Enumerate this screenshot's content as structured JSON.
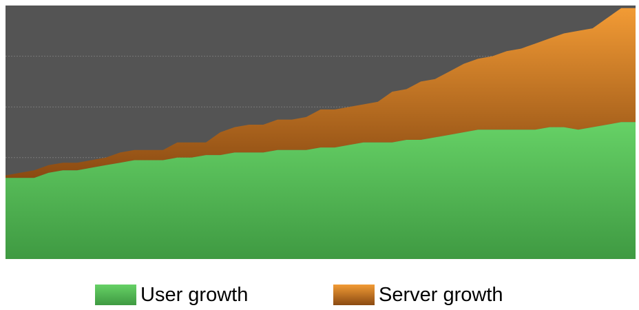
{
  "chart_data": {
    "type": "area",
    "stacked": true,
    "title": "",
    "xlabel": "",
    "ylabel": "",
    "grid": true,
    "legend_position": "bottom",
    "plot_background": "#545454",
    "ylim": [
      0,
      100
    ],
    "x": [
      1,
      2,
      3,
      4,
      5,
      6,
      7,
      8,
      9,
      10,
      11,
      12,
      13,
      14,
      15,
      16,
      17,
      18,
      19,
      20,
      21,
      22,
      23,
      24,
      25,
      26,
      27,
      28,
      29,
      30,
      31,
      32,
      33,
      34,
      35,
      36,
      37,
      38,
      39,
      40,
      41,
      42,
      43,
      44,
      45
    ],
    "series": [
      {
        "name": "User growth",
        "color_top": "#66d166",
        "color_bottom": "#3f9a42",
        "values": [
          32,
          32,
          32,
          34,
          35,
          35,
          36,
          37,
          38,
          39,
          39,
          39,
          40,
          40,
          41,
          41,
          42,
          42,
          42,
          43,
          43,
          43,
          44,
          44,
          45,
          46,
          46,
          46,
          47,
          47,
          48,
          49,
          50,
          51,
          51,
          51,
          51,
          51,
          52,
          52,
          51,
          52,
          53,
          54,
          54
        ]
      },
      {
        "name": "Server growth",
        "color_top": "#f29b35",
        "color_bottom": "#8a4a12",
        "values": [
          1,
          2,
          3,
          3,
          3,
          3,
          3,
          3,
          4,
          4,
          4,
          4,
          6,
          6,
          5,
          9,
          10,
          11,
          11,
          12,
          12,
          13,
          15,
          15,
          15,
          15,
          16,
          20,
          20,
          23,
          23,
          25,
          27,
          28,
          29,
          31,
          32,
          34,
          35,
          37,
          39,
          39,
          42,
          45,
          45
        ]
      }
    ]
  },
  "legend": {
    "items": [
      {
        "label": "User growth"
      },
      {
        "label": "Server growth"
      }
    ]
  }
}
